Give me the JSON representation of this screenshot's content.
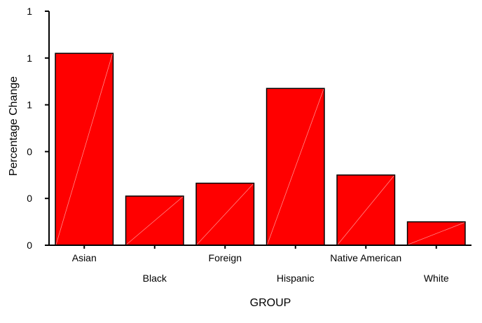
{
  "chart_data": {
    "type": "bar",
    "title": "",
    "xlabel": "GROUP",
    "ylabel": "Percentage Change",
    "categories": [
      "Asian",
      "Black",
      "Foreign",
      "Hispanic",
      "Native American",
      "White"
    ],
    "values": [
      0.82,
      0.21,
      0.265,
      0.67,
      0.3,
      0.1
    ],
    "ylim": [
      0,
      1.0
    ],
    "y_ticks": [
      {
        "value": 0.0,
        "label": "0"
      },
      {
        "value": 0.2,
        "label": "0"
      },
      {
        "value": 0.4,
        "label": "0"
      },
      {
        "value": 0.6,
        "label": "1"
      },
      {
        "value": 0.8,
        "label": "1"
      },
      {
        "value": 1.0,
        "label": "1"
      }
    ],
    "bar_color": "#ff0000",
    "grid": false,
    "legend": "none"
  }
}
